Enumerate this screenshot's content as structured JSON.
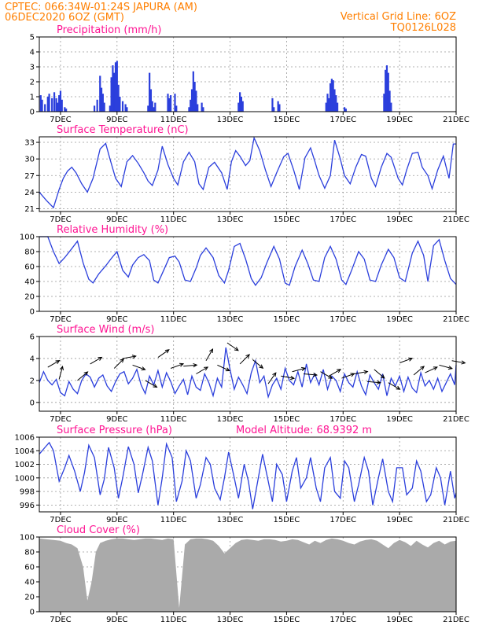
{
  "header": {
    "line1_left": "CPTEC:   066:34W-01:24S   JAPURA (AM)",
    "line2_left": "06DEC2020 6OZ (GMT)",
    "line1_right": "Vertical Grid Line: 6OZ",
    "line2_right": "TQ0126L028"
  },
  "x_ticks": [
    "7DEC",
    "9DEC",
    "11DEC",
    "13DEC",
    "15DEC",
    "17DEC",
    "19DEC",
    "21DEC"
  ],
  "colors": {
    "header": "#ff7f00",
    "title": "#ff1493",
    "series": "#2b3fdc",
    "bars": "#2b3fdc",
    "cloud": "#aaaaaa"
  },
  "panels": {
    "precip": {
      "title": "Precipitation  (mm/h)"
    },
    "temp": {
      "title": "Surface Temperature  (nC)"
    },
    "rh": {
      "title": "Relative Humidity  (%)"
    },
    "wind": {
      "title": "Surface Wind  (m/s)"
    },
    "pressure": {
      "title": "Surface Pressure  (hPa)",
      "extra": "Model Altitude:  68.9392  m"
    },
    "cloud": {
      "title": "Cloud Cover  (%)"
    }
  },
  "chart_data": [
    {
      "type": "bar",
      "id": "precip",
      "ylim": [
        0,
        5
      ],
      "yticks": [
        0,
        1,
        2,
        3,
        4,
        5
      ],
      "xlim_days": [
        6.25,
        21
      ],
      "grid": true,
      "bars": [
        [
          6.3,
          1.1
        ],
        [
          6.35,
          0.8
        ],
        [
          6.45,
          0.5
        ],
        [
          6.55,
          1.0
        ],
        [
          6.6,
          1.2
        ],
        [
          6.7,
          0.9
        ],
        [
          6.78,
          1.3
        ],
        [
          6.85,
          0.9
        ],
        [
          6.9,
          0.6
        ],
        [
          6.95,
          1.1
        ],
        [
          7.0,
          1.4
        ],
        [
          7.05,
          0.8
        ],
        [
          7.15,
          0.3
        ],
        [
          7.2,
          0.2
        ],
        [
          8.2,
          0.4
        ],
        [
          8.3,
          0.8
        ],
        [
          8.4,
          2.4
        ],
        [
          8.45,
          1.6
        ],
        [
          8.5,
          1.2
        ],
        [
          8.55,
          0.6
        ],
        [
          8.75,
          0.4
        ],
        [
          8.8,
          2.3
        ],
        [
          8.85,
          3.1
        ],
        [
          8.9,
          2.6
        ],
        [
          8.95,
          3.3
        ],
        [
          9.0,
          3.4
        ],
        [
          9.05,
          1.8
        ],
        [
          9.1,
          1.0
        ],
        [
          9.2,
          0.7
        ],
        [
          9.3,
          0.5
        ],
        [
          9.35,
          0.3
        ],
        [
          10.1,
          0.4
        ],
        [
          10.15,
          2.6
        ],
        [
          10.2,
          1.5
        ],
        [
          10.25,
          0.7
        ],
        [
          10.3,
          0.3
        ],
        [
          10.35,
          0.6
        ],
        [
          10.8,
          1.2
        ],
        [
          10.85,
          0.9
        ],
        [
          10.9,
          1.1
        ],
        [
          11.05,
          1.2
        ],
        [
          11.1,
          0.4
        ],
        [
          11.55,
          0.3
        ],
        [
          11.6,
          0.8
        ],
        [
          11.65,
          1.5
        ],
        [
          11.7,
          2.7
        ],
        [
          11.75,
          2.0
        ],
        [
          11.8,
          1.4
        ],
        [
          11.85,
          0.5
        ],
        [
          12.0,
          0.6
        ],
        [
          12.05,
          0.3
        ],
        [
          13.3,
          0.6
        ],
        [
          13.35,
          1.3
        ],
        [
          13.4,
          1.0
        ],
        [
          13.45,
          0.7
        ],
        [
          14.5,
          0.9
        ],
        [
          14.55,
          0.3
        ],
        [
          14.7,
          0.7
        ],
        [
          14.75,
          0.5
        ],
        [
          16.4,
          0.6
        ],
        [
          16.45,
          1.2
        ],
        [
          16.5,
          0.9
        ],
        [
          16.55,
          1.9
        ],
        [
          16.6,
          2.2
        ],
        [
          16.65,
          2.1
        ],
        [
          16.7,
          1.5
        ],
        [
          16.75,
          1.1
        ],
        [
          16.8,
          0.6
        ],
        [
          17.05,
          0.3
        ],
        [
          17.1,
          0.2
        ],
        [
          18.45,
          1.2
        ],
        [
          18.5,
          2.8
        ],
        [
          18.55,
          3.1
        ],
        [
          18.6,
          2.6
        ],
        [
          18.65,
          1.4
        ],
        [
          18.7,
          0.6
        ]
      ]
    },
    {
      "type": "line",
      "id": "temp",
      "ylim": [
        20.5,
        34
      ],
      "yticks": [
        21,
        24,
        27,
        30,
        33
      ],
      "xlim_days": [
        6.25,
        21
      ],
      "grid": true,
      "x": [
        6.25,
        6.5,
        6.75,
        6.95,
        7.1,
        7.25,
        7.4,
        7.55,
        7.75,
        7.95,
        8.15,
        8.4,
        8.6,
        8.75,
        8.95,
        9.15,
        9.35,
        9.55,
        9.75,
        9.95,
        10.1,
        10.25,
        10.45,
        10.6,
        10.8,
        11.0,
        11.15,
        11.35,
        11.55,
        11.75,
        11.9,
        12.05,
        12.25,
        12.45,
        12.7,
        12.9,
        13.05,
        13.2,
        13.35,
        13.55,
        13.7,
        13.85,
        14.05,
        14.25,
        14.45,
        14.65,
        14.9,
        15.05,
        15.25,
        15.45,
        15.65,
        15.85,
        16.0,
        16.15,
        16.35,
        16.55,
        16.7,
        16.9,
        17.05,
        17.25,
        17.45,
        17.65,
        17.8,
        18.0,
        18.15,
        18.35,
        18.55,
        18.7,
        18.95,
        19.1,
        19.25,
        19.45,
        19.65,
        19.8,
        20.0,
        20.15,
        20.35,
        20.55,
        20.75,
        20.9,
        21.0
      ],
      "y": [
        24,
        22.5,
        21.2,
        24.5,
        26.5,
        27.8,
        28.5,
        27.5,
        25.5,
        24,
        26.5,
        31.8,
        32.8,
        30,
        26.5,
        25,
        29.5,
        30.6,
        29.2,
        27.5,
        26,
        25.2,
        28,
        32.3,
        29,
        26.5,
        25.3,
        29.5,
        31.2,
        29.5,
        25.5,
        24.5,
        28.5,
        29.4,
        27.5,
        24.5,
        29.5,
        31.5,
        30.5,
        28.8,
        29.7,
        33.8,
        31.5,
        28,
        25,
        27.5,
        30.4,
        31,
        28,
        24.5,
        30.2,
        32,
        29.6,
        27,
        24.7,
        27,
        33.4,
        30,
        27,
        25.5,
        28.5,
        30.8,
        30.5,
        26.5,
        25,
        28.5,
        31,
        30.3,
        26.5,
        25.3,
        28,
        31,
        31.2,
        28.5,
        27,
        24.6,
        28,
        30.5,
        26.5,
        32.7,
        32.7
      ]
    },
    {
      "type": "line",
      "id": "rh",
      "ylim": [
        0,
        100
      ],
      "yticks": [
        0,
        20,
        40,
        60,
        80,
        100
      ],
      "xlim_days": [
        6.25,
        21
      ],
      "grid": true,
      "x": [
        6.25,
        6.55,
        6.75,
        6.95,
        7.15,
        7.4,
        7.6,
        7.8,
        8.0,
        8.15,
        8.35,
        8.6,
        8.8,
        9.0,
        9.2,
        9.4,
        9.55,
        9.75,
        9.95,
        10.15,
        10.3,
        10.45,
        10.65,
        10.85,
        11.05,
        11.2,
        11.4,
        11.6,
        11.8,
        11.95,
        12.15,
        12.4,
        12.6,
        12.8,
        12.95,
        13.15,
        13.35,
        13.55,
        13.75,
        13.9,
        14.1,
        14.3,
        14.55,
        14.75,
        14.95,
        15.1,
        15.3,
        15.55,
        15.75,
        15.95,
        16.15,
        16.35,
        16.55,
        16.75,
        16.95,
        17.1,
        17.3,
        17.55,
        17.75,
        17.95,
        18.15,
        18.35,
        18.6,
        18.8,
        19.0,
        19.2,
        19.45,
        19.65,
        19.85,
        20.0,
        20.2,
        20.4,
        20.6,
        20.8,
        21.0
      ],
      "y": [
        100,
        100,
        80,
        64,
        72,
        84,
        94,
        65,
        43,
        38,
        50,
        61,
        71,
        80,
        55,
        46,
        62,
        72,
        76,
        68,
        42,
        38,
        55,
        72,
        74,
        66,
        42,
        40,
        58,
        75,
        85,
        72,
        48,
        38,
        55,
        87,
        91,
        70,
        44,
        35,
        45,
        65,
        87,
        70,
        38,
        35,
        60,
        82,
        64,
        42,
        40,
        72,
        87,
        70,
        42,
        36,
        55,
        80,
        70,
        42,
        40,
        62,
        83,
        72,
        45,
        40,
        78,
        94,
        75,
        40,
        88,
        96,
        68,
        44,
        36
      ]
    },
    {
      "type": "line",
      "id": "wind",
      "ylim": [
        -0.8,
        6
      ],
      "yticks": [
        0,
        2,
        4,
        6
      ],
      "xlim_days": [
        6.25,
        21
      ],
      "grid": true,
      "x": [
        6.25,
        6.4,
        6.55,
        6.7,
        6.85,
        7.0,
        7.15,
        7.3,
        7.45,
        7.6,
        7.75,
        7.9,
        8.05,
        8.2,
        8.35,
        8.5,
        8.65,
        8.8,
        8.95,
        9.1,
        9.25,
        9.4,
        9.55,
        9.7,
        9.85,
        10.0,
        10.15,
        10.3,
        10.45,
        10.6,
        10.75,
        10.9,
        11.05,
        11.2,
        11.35,
        11.5,
        11.65,
        11.8,
        11.95,
        12.1,
        12.25,
        12.4,
        12.55,
        12.7,
        12.85,
        13.0,
        13.15,
        13.3,
        13.45,
        13.6,
        13.75,
        13.9,
        14.05,
        14.2,
        14.35,
        14.5,
        14.65,
        14.8,
        14.95,
        15.1,
        15.25,
        15.4,
        15.55,
        15.7,
        15.85,
        16.0,
        16.15,
        16.3,
        16.45,
        16.6,
        16.75,
        16.9,
        17.05,
        17.2,
        17.35,
        17.5,
        17.65,
        17.8,
        17.95,
        18.1,
        18.25,
        18.4,
        18.55,
        18.7,
        18.85,
        19.0,
        19.15,
        19.3,
        19.45,
        19.6,
        19.75,
        19.9,
        20.05,
        20.2,
        20.35,
        20.5,
        20.65,
        20.8,
        20.95,
        21.0
      ],
      "y": [
        1.8,
        2.8,
        2.0,
        1.6,
        2.1,
        0.9,
        0.6,
        1.9,
        1.2,
        0.8,
        2.0,
        2.6,
        2.3,
        1.4,
        2.2,
        2.5,
        1.5,
        1.0,
        1.9,
        2.6,
        2.8,
        1.7,
        2.2,
        3.0,
        1.6,
        0.8,
        2.4,
        1.6,
        2.9,
        1.4,
        2.7,
        1.9,
        0.8,
        1.5,
        2.1,
        0.7,
        2.4,
        1.4,
        1.1,
        2.6,
        1.8,
        0.6,
        2.2,
        1.4,
        5.0,
        3.0,
        1.2,
        2.3,
        1.6,
        0.8,
        2.7,
        3.8,
        1.8,
        2.4,
        0.5,
        1.6,
        2.2,
        1.2,
        3.1,
        2.0,
        1.6,
        2.8,
        1.4,
        3.5,
        1.8,
        2.6,
        1.6,
        3.0,
        1.2,
        2.4,
        2.0,
        1.0,
        2.6,
        1.8,
        1.4,
        2.8,
        1.5,
        0.7,
        2.5,
        1.8,
        1.2,
        2.6,
        0.6,
        2.2,
        1.5,
        2.4,
        1.0,
        2.3,
        1.3,
        0.9,
        2.7,
        1.5,
        2.0,
        1.2,
        2.2,
        1.0,
        1.8,
        2.6,
        1.6,
        3.4
      ]
    },
    {
      "type": "line",
      "id": "pressure",
      "ylim": [
        995,
        1006
      ],
      "yticks": [
        996,
        998,
        1000,
        1002,
        1004,
        1006
      ],
      "xlim_days": [
        6.25,
        21
      ],
      "grid": true,
      "x": [
        6.25,
        6.45,
        6.6,
        6.75,
        6.95,
        7.15,
        7.3,
        7.5,
        7.7,
        7.85,
        8.0,
        8.2,
        8.4,
        8.55,
        8.7,
        8.9,
        9.05,
        9.2,
        9.4,
        9.6,
        9.75,
        9.9,
        10.1,
        10.25,
        10.45,
        10.6,
        10.75,
        10.95,
        11.1,
        11.3,
        11.45,
        11.6,
        11.8,
        11.95,
        12.15,
        12.3,
        12.45,
        12.65,
        12.8,
        12.95,
        13.15,
        13.3,
        13.5,
        13.65,
        13.8,
        14.0,
        14.15,
        14.35,
        14.5,
        14.65,
        14.85,
        15.0,
        15.2,
        15.35,
        15.5,
        15.7,
        15.85,
        16.05,
        16.2,
        16.35,
        16.55,
        16.7,
        16.9,
        17.05,
        17.2,
        17.4,
        17.55,
        17.75,
        17.9,
        18.05,
        18.25,
        18.4,
        18.6,
        18.75,
        18.9,
        19.1,
        19.25,
        19.45,
        19.6,
        19.75,
        19.95,
        20.1,
        20.3,
        20.45,
        20.6,
        20.8,
        20.95,
        21.0
      ],
      "y": [
        1003.5,
        1004.5,
        1005.2,
        1004.0,
        999.5,
        1001.5,
        1003.3,
        1001.0,
        998.0,
        1000.8,
        1004.8,
        1003.0,
        997.5,
        999.8,
        1004.5,
        1001.5,
        997.0,
        1000.0,
        1004.6,
        1002.0,
        997.8,
        1000.5,
        1004.5,
        1002.5,
        996.0,
        1000.0,
        1005.0,
        1003.0,
        996.5,
        999.5,
        1004.0,
        1002.5,
        997.0,
        999.0,
        1003.0,
        1002.0,
        998.5,
        996.8,
        1000.0,
        1003.8,
        1000.0,
        997.0,
        1002.0,
        999.5,
        995.4,
        1000.0,
        1003.5,
        999.5,
        996.5,
        1002.0,
        1000.5,
        996.5,
        1001.0,
        1003.0,
        998.5,
        1000.0,
        1003.0,
        998.5,
        996.5,
        1001.5,
        1003.0,
        998.0,
        997.0,
        1002.5,
        1001.5,
        996.5,
        999.0,
        1003.0,
        1001.0,
        996.0,
        1000.0,
        1002.8,
        998.0,
        996.5,
        1001.5,
        1001.5,
        997.5,
        998.5,
        1002.5,
        1001.0,
        996.5,
        997.5,
        1001.5,
        1000.0,
        996.0,
        1001.0,
        997.0,
        997.8
      ]
    },
    {
      "type": "area",
      "id": "cloud",
      "ylim": [
        0,
        100
      ],
      "yticks": [
        0,
        20,
        40,
        60,
        80,
        100
      ],
      "xlim_days": [
        6.25,
        21
      ],
      "grid": true,
      "x": [
        6.25,
        6.5,
        6.75,
        7.0,
        7.2,
        7.4,
        7.6,
        7.8,
        7.95,
        8.1,
        8.25,
        8.4,
        8.6,
        8.8,
        9.0,
        9.2,
        9.4,
        9.6,
        9.8,
        10.0,
        10.2,
        10.4,
        10.6,
        10.8,
        11.0,
        11.2,
        11.4,
        11.6,
        11.8,
        12.0,
        12.2,
        12.4,
        12.6,
        12.8,
        13.0,
        13.2,
        13.4,
        13.6,
        13.8,
        14.0,
        14.2,
        14.4,
        14.6,
        14.8,
        15.0,
        15.2,
        15.4,
        15.6,
        15.8,
        16.0,
        16.2,
        16.4,
        16.6,
        16.8,
        17.0,
        17.2,
        17.4,
        17.6,
        17.8,
        18.0,
        18.2,
        18.4,
        18.6,
        18.8,
        19.0,
        19.2,
        19.4,
        19.6,
        19.8,
        20.0,
        20.2,
        20.4,
        20.6,
        20.8,
        21.0
      ],
      "y": [
        98,
        97,
        96,
        95,
        92,
        90,
        85,
        60,
        15,
        40,
        80,
        92,
        95,
        97,
        98,
        98,
        97,
        96,
        97,
        98,
        98,
        97,
        96,
        98,
        97,
        5,
        90,
        97,
        98,
        98,
        97,
        95,
        88,
        78,
        85,
        92,
        96,
        97,
        96,
        95,
        97,
        97,
        96,
        94,
        95,
        97,
        96,
        93,
        90,
        95,
        92,
        96,
        98,
        97,
        95,
        92,
        90,
        94,
        96,
        97,
        95,
        90,
        85,
        92,
        96,
        93,
        88,
        95,
        90,
        86,
        92,
        95,
        90,
        94,
        95
      ]
    }
  ],
  "wind_arrows": [
    [
      6.55,
      30
    ],
    [
      6.95,
      75
    ],
    [
      7.6,
      40
    ],
    [
      8.05,
      30
    ],
    [
      8.9,
      45
    ],
    [
      9.2,
      10
    ],
    [
      9.55,
      -20
    ],
    [
      10.0,
      -30
    ],
    [
      10.45,
      35
    ],
    [
      10.9,
      20
    ],
    [
      11.35,
      5
    ],
    [
      11.8,
      30
    ],
    [
      12.15,
      60
    ],
    [
      12.55,
      -25
    ],
    [
      12.9,
      -35
    ],
    [
      13.35,
      45
    ],
    [
      13.8,
      -40
    ],
    [
      14.35,
      55
    ],
    [
      14.8,
      -10
    ],
    [
      15.2,
      15
    ],
    [
      15.6,
      -5
    ],
    [
      16.2,
      -30
    ],
    [
      16.5,
      30
    ],
    [
      16.95,
      20
    ],
    [
      17.4,
      10
    ],
    [
      17.85,
      -5
    ],
    [
      18.1,
      -40
    ],
    [
      18.6,
      -30
    ],
    [
      19.0,
      20
    ],
    [
      19.5,
      40
    ],
    [
      19.9,
      25
    ],
    [
      20.4,
      -15
    ],
    [
      20.85,
      -10
    ]
  ]
}
